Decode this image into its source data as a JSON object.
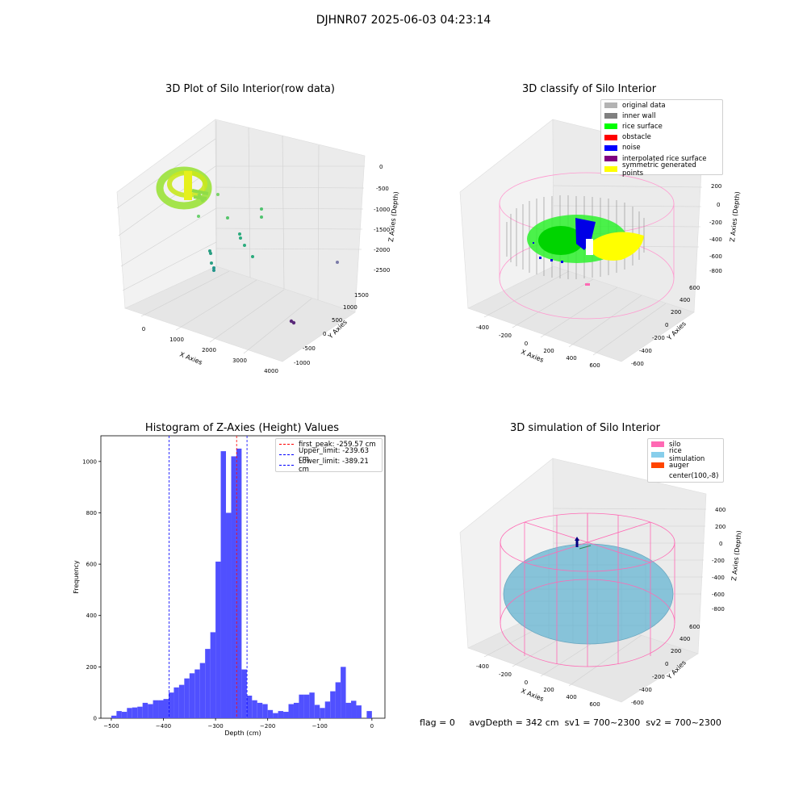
{
  "suptitle": "DJHNR07 2025-06-03 04:23:14",
  "panels": {
    "raw": {
      "title": "3D Plot of Silo Interior(row data)",
      "xlabel": "X Axies",
      "ylabel": "Y Axies",
      "zlabel": "Z Axies (Depth)",
      "xticks": [
        "0",
        "1000",
        "2000",
        "3000",
        "4000"
      ],
      "yticks": [
        "-1000",
        "-500",
        "0",
        "500",
        "1000",
        "1500"
      ],
      "zticks": [
        "0",
        "-500",
        "-1000",
        "-1500",
        "-2000",
        "-2500"
      ]
    },
    "classify": {
      "title": "3D classify of Silo Interior",
      "xlabel": "X Axies",
      "ylabel": "Y Axies",
      "zlabel": "Z Axies (Depth)",
      "xticks": [
        "-400",
        "-200",
        "0",
        "200",
        "400",
        "600"
      ],
      "yticks": [
        "-600",
        "-400",
        "-200",
        "0",
        "200",
        "400",
        "600"
      ],
      "zticks": [
        "200",
        "0",
        "-200",
        "-400",
        "-600",
        "-800"
      ],
      "legend": [
        {
          "label": "original data",
          "color": "#b3b3b3"
        },
        {
          "label": "inner wall",
          "color": "#808080"
        },
        {
          "label": "rice surface",
          "color": "#00ff00"
        },
        {
          "label": "obstacle",
          "color": "#ff0000"
        },
        {
          "label": "noise",
          "color": "#0000ff"
        },
        {
          "label": "interpolated rice surface",
          "color": "#800080"
        },
        {
          "label": "symmetric generated points",
          "color": "#ffff00"
        }
      ]
    },
    "simulation": {
      "title": "3D simulation of Silo Interior",
      "xlabel": "X Axies",
      "ylabel": "Y Axies",
      "zlabel": "Z Axies (Depth)",
      "xticks": [
        "-400",
        "-200",
        "0",
        "200",
        "400",
        "600"
      ],
      "yticks": [
        "-600",
        "-400",
        "-200",
        "0",
        "200",
        "400",
        "600"
      ],
      "zticks": [
        "400",
        "200",
        "0",
        "-200",
        "-400",
        "-600",
        "-800"
      ],
      "legend": [
        {
          "label": "silo",
          "color": "#ff69b4"
        },
        {
          "label": "rice simulation",
          "color": "#87ceeb"
        },
        {
          "label": "auger",
          "color": "#ff4500"
        },
        {
          "label": "center(100,-8)",
          "color": "#ffffff"
        }
      ]
    }
  },
  "chart_data": [
    {
      "type": "bar",
      "title": "Histogram of Z-Axies (Height) Values",
      "xlabel": "Depth (cm)",
      "ylabel": "Frequency",
      "xlim": [
        -520,
        25
      ],
      "ylim": [
        0,
        1100
      ],
      "xticks": [
        -500,
        -400,
        -300,
        -200,
        -100,
        0
      ],
      "yticks": [
        0,
        200,
        400,
        600,
        800,
        1000
      ],
      "bin_width": 10,
      "bar_color": "#5050ff",
      "bins": [
        [
          -500,
          10
        ],
        [
          -490,
          28
        ],
        [
          -480,
          25
        ],
        [
          -470,
          40
        ],
        [
          -460,
          42
        ],
        [
          -450,
          45
        ],
        [
          -440,
          60
        ],
        [
          -430,
          55
        ],
        [
          -420,
          70
        ],
        [
          -410,
          70
        ],
        [
          -400,
          75
        ],
        [
          -390,
          100
        ],
        [
          -380,
          120
        ],
        [
          -370,
          130
        ],
        [
          -360,
          155
        ],
        [
          -350,
          175
        ],
        [
          -340,
          190
        ],
        [
          -330,
          215
        ],
        [
          -320,
          270
        ],
        [
          -310,
          335
        ],
        [
          -300,
          610
        ],
        [
          -290,
          1040
        ],
        [
          -280,
          800
        ],
        [
          -270,
          1020
        ],
        [
          -260,
          1050
        ],
        [
          -250,
          190
        ],
        [
          -240,
          88
        ],
        [
          -230,
          70
        ],
        [
          -220,
          60
        ],
        [
          -210,
          55
        ],
        [
          -200,
          32
        ],
        [
          -190,
          20
        ],
        [
          -180,
          28
        ],
        [
          -170,
          25
        ],
        [
          -160,
          55
        ],
        [
          -150,
          60
        ],
        [
          -140,
          92
        ],
        [
          -130,
          92
        ],
        [
          -120,
          100
        ],
        [
          -110,
          52
        ],
        [
          -100,
          40
        ],
        [
          -90,
          65
        ],
        [
          -80,
          105
        ],
        [
          -70,
          140
        ],
        [
          -60,
          200
        ],
        [
          -50,
          60
        ],
        [
          -40,
          68
        ],
        [
          -30,
          50
        ],
        [
          -10,
          28
        ]
      ],
      "lines": [
        {
          "label": "first_peak: -259.57 cm",
          "x": -259.57,
          "color": "#ff0000"
        },
        {
          "label": "Upper_limit: -239.63 cm",
          "x": -239.63,
          "color": "#0000ff"
        },
        {
          "label": "Lower_limit: -389.21 cm",
          "x": -389.21,
          "color": "#0000ff"
        }
      ]
    }
  ],
  "footer": {
    "flag": "flag = 0",
    "avgDepth": "avgDepth = 342 cm",
    "sv1": "sv1 = 700~2300",
    "sv2": "sv2 = 700~2300"
  }
}
